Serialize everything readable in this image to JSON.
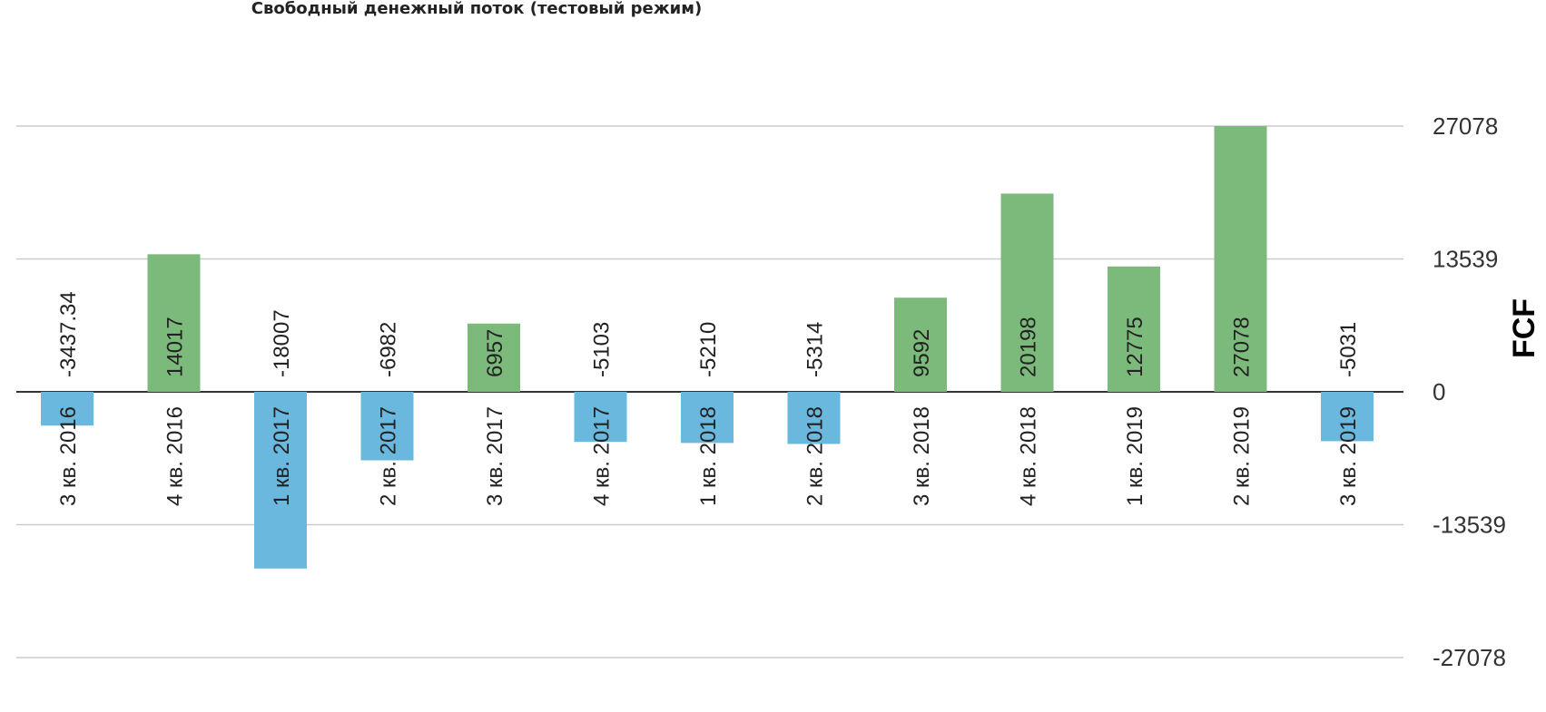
{
  "title": "Свободный денежный поток (тестовый режим)",
  "colors": {
    "positive": "#7cba7c",
    "negative": "#6bb8de",
    "ylabel": "#4caf50",
    "grid": "#cccccc",
    "axis": "#333333"
  },
  "chart_data": {
    "type": "bar",
    "title": "Свободный денежный поток (тестовый режим)",
    "ylabel": "FCF",
    "categories": [
      "3 кв. 2016",
      "4 кв. 2016",
      "1 кв. 2017",
      "2 кв. 2017",
      "3 кв. 2017",
      "4 кв. 2017",
      "1 кв. 2018",
      "2 кв. 2018",
      "3 кв. 2018",
      "4 кв. 2018",
      "1 кв. 2019",
      "2 кв. 2019",
      "3 кв. 2019"
    ],
    "values": [
      -3437.34,
      14017,
      -18007,
      -6982,
      6957,
      -5103,
      -5210,
      -5314,
      9592,
      20198,
      12775,
      27078,
      -5031
    ],
    "value_labels": [
      "-3437.34",
      "14017",
      "-18007",
      "-6982",
      "6957",
      "-5103",
      "-5210",
      "-5314",
      "9592",
      "20198",
      "12775",
      "27078",
      "-5031"
    ],
    "yticks": [
      27078,
      13539,
      0,
      -13539,
      -27078
    ],
    "ytick_labels": [
      "27078",
      "13539",
      "0",
      "-13539",
      "-27078"
    ],
    "ylim": [
      -27078,
      27078
    ],
    "grid": true
  }
}
